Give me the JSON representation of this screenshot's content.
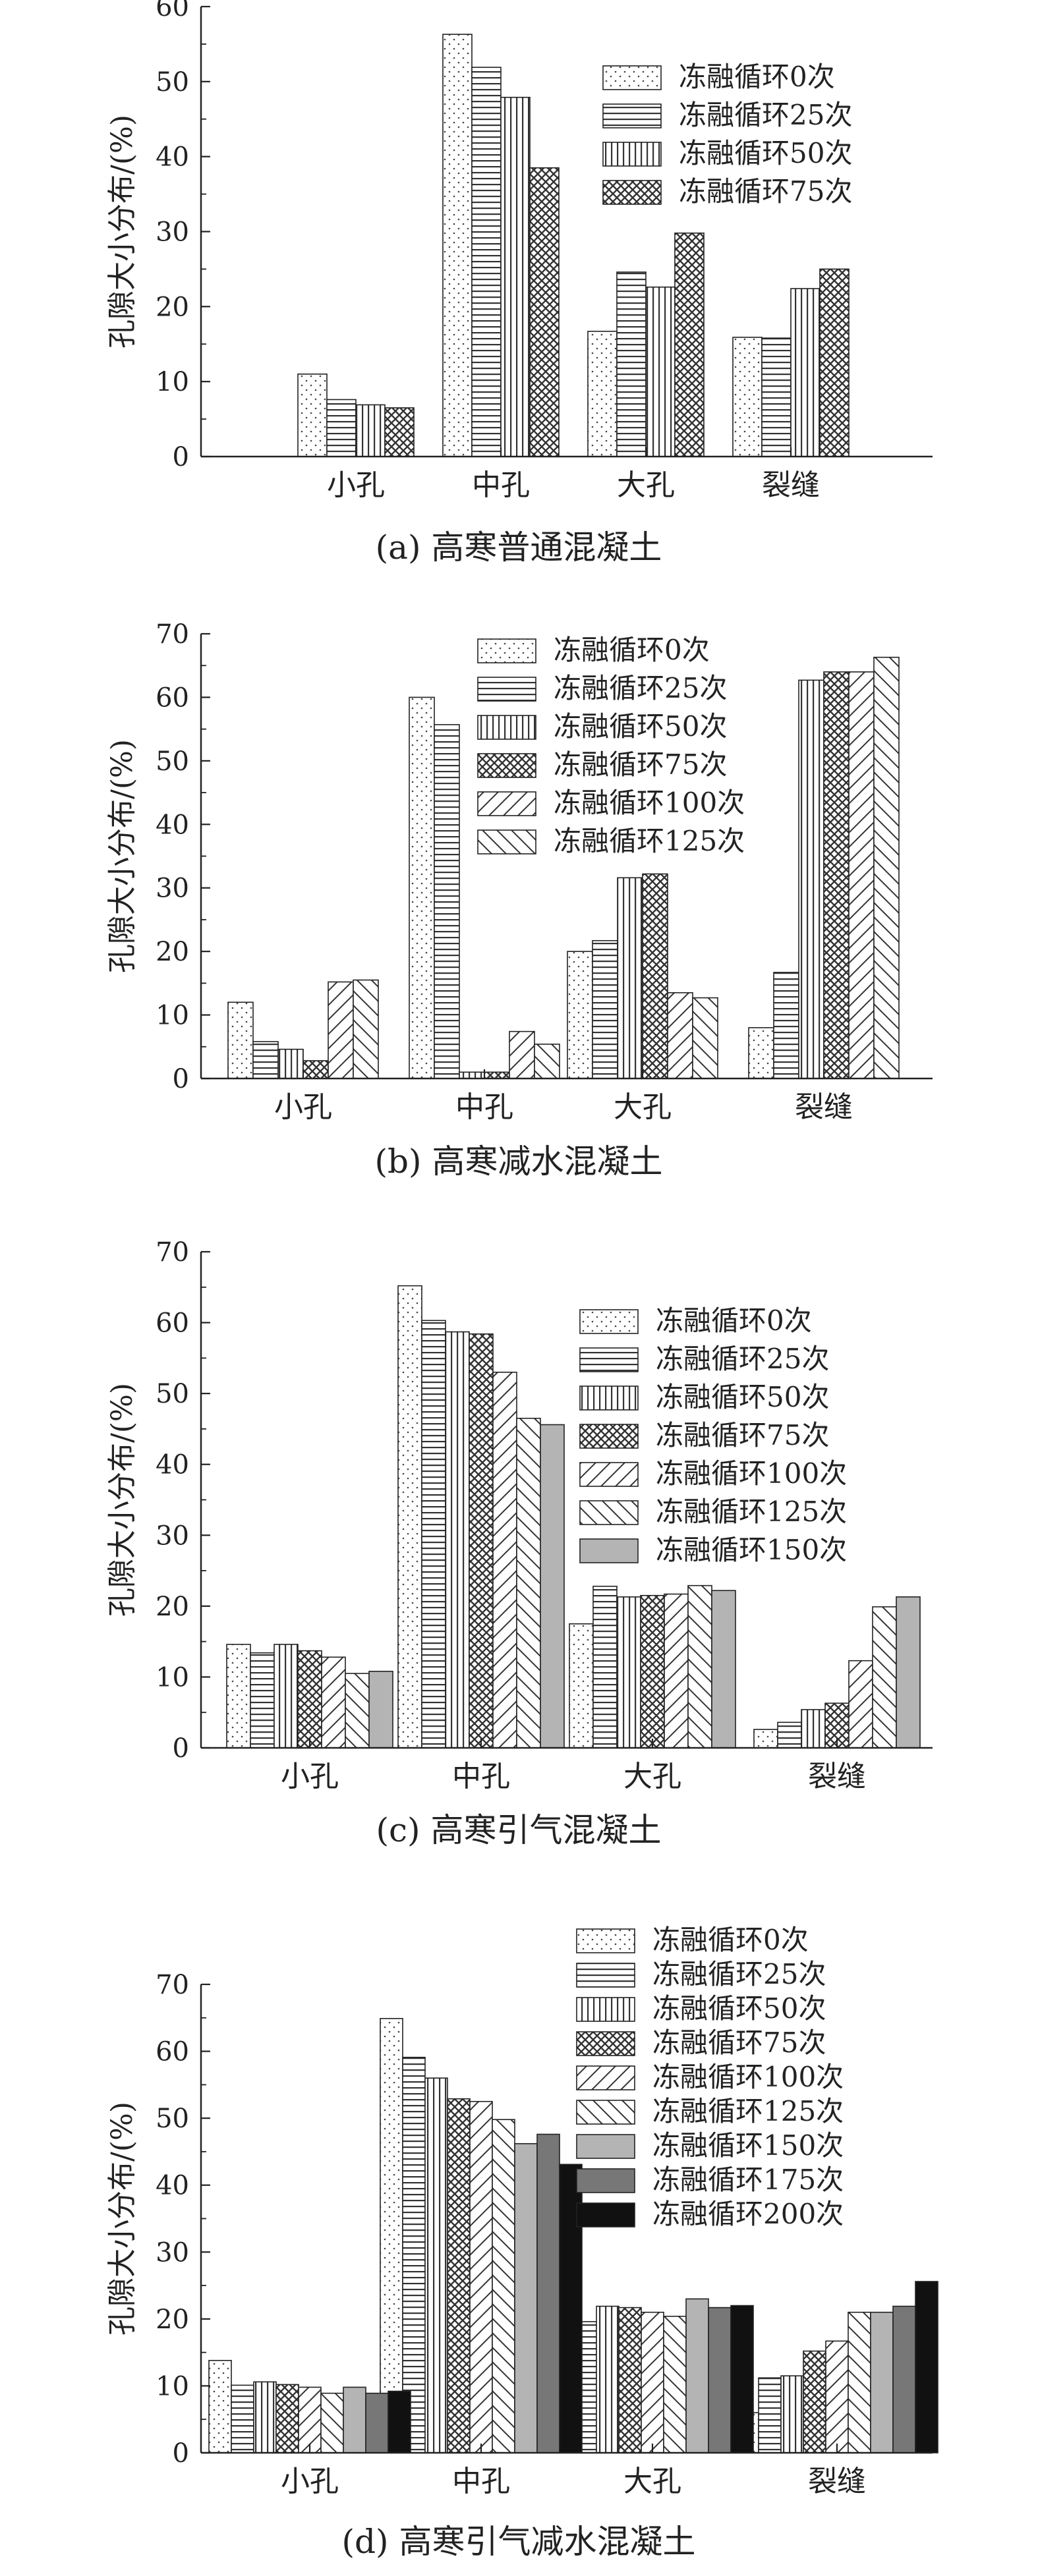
{
  "chart_data": [
    {
      "type": "bar",
      "caption": "(a) 高寒普通混凝土",
      "ylabel": "孔隙大小分布/(%)",
      "xlabel": "",
      "ylim": [
        0,
        60
      ],
      "yticks": [
        0,
        10,
        20,
        30,
        40,
        50,
        60
      ],
      "categories": [
        "小孔",
        "中孔",
        "大孔",
        "裂缝"
      ],
      "legend_position": "top-right",
      "series": [
        {
          "name": "冻融循环0次",
          "pattern": "dots",
          "values": [
            11.0,
            56.3,
            16.7,
            15.9
          ]
        },
        {
          "name": "冻融循环25次",
          "pattern": "hlines",
          "values": [
            7.6,
            51.9,
            24.6,
            15.8
          ]
        },
        {
          "name": "冻融循环50次",
          "pattern": "vlines",
          "values": [
            6.9,
            47.9,
            22.6,
            22.4
          ]
        },
        {
          "name": "冻融循环75次",
          "pattern": "crosshatch",
          "values": [
            6.5,
            38.5,
            29.8,
            25.0
          ]
        }
      ]
    },
    {
      "type": "bar",
      "caption": "(b) 高寒减水混凝土",
      "ylabel": "孔隙大小分布/(%)",
      "xlabel": "",
      "ylim": [
        0,
        70
      ],
      "yticks": [
        0,
        10,
        20,
        30,
        40,
        50,
        60,
        70
      ],
      "categories": [
        "小孔",
        "中孔",
        "大孔",
        "裂缝"
      ],
      "legend_position": "top-right",
      "series": [
        {
          "name": "冻融循环0次",
          "pattern": "dots",
          "values": [
            12.0,
            60.0,
            20.0,
            8.0
          ]
        },
        {
          "name": "冻融循环25次",
          "pattern": "hlines",
          "values": [
            5.8,
            55.7,
            21.7,
            16.7
          ]
        },
        {
          "name": "冻融循环50次",
          "pattern": "vlines",
          "values": [
            4.6,
            1.0,
            31.6,
            62.7
          ]
        },
        {
          "name": "冻融循环75次",
          "pattern": "crosshatch",
          "values": [
            2.8,
            1.0,
            32.2,
            64.0
          ]
        },
        {
          "name": "冻融循环100次",
          "pattern": "fdiag",
          "values": [
            15.2,
            7.4,
            13.5,
            64.0
          ]
        },
        {
          "name": "冻融循环125次",
          "pattern": "bdiag",
          "values": [
            15.5,
            5.4,
            12.7,
            66.3
          ]
        }
      ]
    },
    {
      "type": "bar",
      "caption": "(c) 高寒引气混凝土",
      "ylabel": "孔隙大小分布/(%)",
      "xlabel": "",
      "ylim": [
        0,
        70
      ],
      "yticks": [
        0,
        10,
        20,
        30,
        40,
        50,
        60,
        70
      ],
      "categories": [
        "小孔",
        "中孔",
        "大孔",
        "裂缝"
      ],
      "legend_position": "top-right",
      "series": [
        {
          "name": "冻融循环0次",
          "pattern": "dots",
          "values": [
            14.6,
            65.2,
            17.5,
            2.6
          ]
        },
        {
          "name": "冻融循环25次",
          "pattern": "hlines",
          "values": [
            13.4,
            60.3,
            22.8,
            3.6
          ]
        },
        {
          "name": "冻融循环50次",
          "pattern": "vlines",
          "values": [
            14.6,
            58.7,
            21.3,
            5.4
          ]
        },
        {
          "name": "冻融循环75次",
          "pattern": "crosshatch",
          "values": [
            13.7,
            58.4,
            21.5,
            6.3
          ]
        },
        {
          "name": "冻融循环100次",
          "pattern": "fdiag",
          "values": [
            12.8,
            53.0,
            21.7,
            12.3
          ]
        },
        {
          "name": "冻融循环125次",
          "pattern": "bdiag",
          "values": [
            10.5,
            46.5,
            22.9,
            19.9
          ]
        },
        {
          "name": "冻融循环150次",
          "pattern": "lightgray",
          "values": [
            10.8,
            45.6,
            22.2,
            21.3
          ]
        }
      ]
    },
    {
      "type": "bar",
      "caption": "(d) 高寒引气减水混凝土",
      "ylabel": "孔隙大小分布/(%)",
      "xlabel": "",
      "ylim": [
        0,
        70
      ],
      "yticks": [
        0,
        10,
        20,
        30,
        40,
        50,
        60,
        70
      ],
      "categories": [
        "小孔",
        "中孔",
        "大孔",
        "裂缝"
      ],
      "legend_position": "top-right",
      "series": [
        {
          "name": "冻融循环0次",
          "pattern": "dots",
          "values": [
            13.8,
            64.9,
            15.4,
            6.0
          ]
        },
        {
          "name": "冻融循环25次",
          "pattern": "hlines",
          "values": [
            10.1,
            59.1,
            19.6,
            11.2
          ]
        },
        {
          "name": "冻融循环50次",
          "pattern": "vlines",
          "values": [
            10.6,
            56.0,
            21.9,
            11.5
          ]
        },
        {
          "name": "冻融循环75次",
          "pattern": "crosshatch",
          "values": [
            10.2,
            52.9,
            21.7,
            15.2
          ]
        },
        {
          "name": "冻融循环100次",
          "pattern": "fdiag",
          "values": [
            9.8,
            52.5,
            21.0,
            16.7
          ]
        },
        {
          "name": "冻融循环125次",
          "pattern": "bdiag",
          "values": [
            8.9,
            49.8,
            20.4,
            21.0
          ]
        },
        {
          "name": "冻融循环150次",
          "pattern": "lightgray",
          "values": [
            9.8,
            46.2,
            23.0,
            21.0
          ]
        },
        {
          "name": "冻融循环175次",
          "pattern": "darkgray",
          "values": [
            8.9,
            47.6,
            21.7,
            21.9
          ]
        },
        {
          "name": "冻融循环200次",
          "pattern": "black",
          "values": [
            9.2,
            43.1,
            22.0,
            25.6
          ]
        }
      ]
    }
  ]
}
